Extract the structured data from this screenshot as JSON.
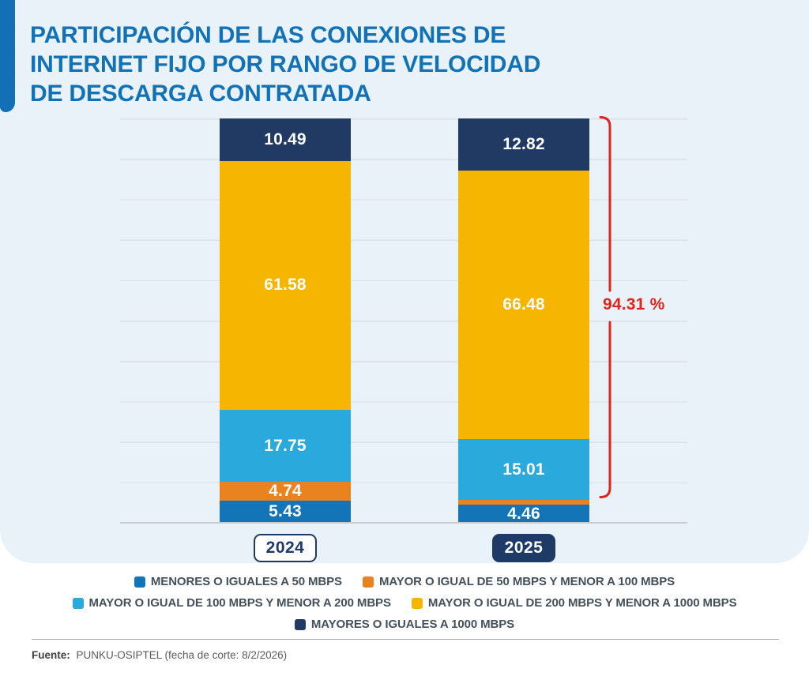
{
  "title": "PARTICIPACIÓN DE LAS CONEXIONES DE\nINTERNET FIJO POR RANGO DE VELOCIDAD\nDE DESCARGA CONTRATADA",
  "accent_color": "#1470b6",
  "chart_data": {
    "type": "bar",
    "stacked": true,
    "unit": "percent",
    "title": "PARTICIPACIÓN DE LAS CONEXIONES DE INTERNET FIJO POR RANGO DE VELOCIDAD DE DESCARGA CONTRATADA",
    "categories": [
      "2024",
      "2025"
    ],
    "series": [
      {
        "name": "MENORES O IGUALES A 50 MBPS",
        "color": "#1374b8",
        "values": [
          5.43,
          4.46
        ]
      },
      {
        "name": "MAYOR O IGUAL DE 50 MBPS Y MENOR A 100 MBPS",
        "color": "#e8831f",
        "values": [
          4.74,
          1.22
        ]
      },
      {
        "name": "MAYOR O IGUAL DE 100 MBPS Y MENOR A 200 MBPS",
        "color": "#29a9dc",
        "values": [
          17.75,
          15.01
        ]
      },
      {
        "name": "MAYOR O IGUAL DE 200 MBPS Y MENOR A 1000 MBPS",
        "color": "#f5b501",
        "values": [
          61.58,
          66.48
        ]
      },
      {
        "name": "MAYORES O IGUALES A 1000 MBPS",
        "color": "#203a64",
        "values": [
          10.49,
          12.82
        ]
      }
    ],
    "ylim": [
      0,
      100
    ],
    "grid": true,
    "legend_position": "bottom",
    "annotation": {
      "label": "94.31 %",
      "color": "#e2231a",
      "applies_to": "2025",
      "covers_series": [
        "MAYOR O IGUAL DE 100 MBPS Y MENOR A 200 MBPS",
        "MAYOR O IGUAL DE 200 MBPS Y MENOR A 1000 MBPS",
        "MAYORES O IGUALES A 1000 MBPS"
      ],
      "covers_total": 94.31
    }
  },
  "footer": {
    "source_label": "Fuente:",
    "source_text": "PUNKU-OSIPTEL (fecha de corte: 8/2/2026)"
  }
}
